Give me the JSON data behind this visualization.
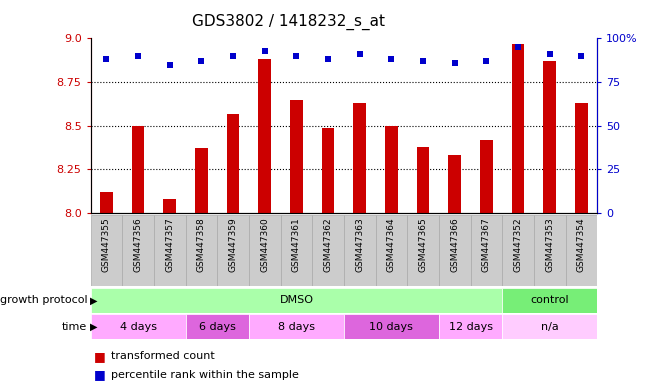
{
  "title": "GDS3802 / 1418232_s_at",
  "samples": [
    "GSM447355",
    "GSM447356",
    "GSM447357",
    "GSM447358",
    "GSM447359",
    "GSM447360",
    "GSM447361",
    "GSM447362",
    "GSM447363",
    "GSM447364",
    "GSM447365",
    "GSM447366",
    "GSM447367",
    "GSM447352",
    "GSM447353",
    "GSM447354"
  ],
  "transformed_counts": [
    8.12,
    8.5,
    8.08,
    8.37,
    8.57,
    8.88,
    8.65,
    8.49,
    8.63,
    8.5,
    8.38,
    8.33,
    8.42,
    8.97,
    8.87,
    8.63
  ],
  "percentile_ranks": [
    88,
    90,
    85,
    87,
    90,
    93,
    90,
    88,
    91,
    88,
    87,
    86,
    87,
    95,
    91,
    90
  ],
  "ylim_left": [
    8.0,
    9.0
  ],
  "ylim_right": [
    0,
    100
  ],
  "yticks_left": [
    8.0,
    8.25,
    8.5,
    8.75,
    9.0
  ],
  "yticks_right": [
    0,
    25,
    50,
    75,
    100
  ],
  "ytick_labels_right": [
    "0",
    "25",
    "50",
    "75",
    "100%"
  ],
  "bar_color": "#cc0000",
  "dot_color": "#0000cc",
  "dotted_lines": [
    8.25,
    8.5,
    8.75
  ],
  "growth_protocol_groups": [
    {
      "label": "DMSO",
      "start": 0,
      "end": 13,
      "color": "#aaffaa"
    },
    {
      "label": "control",
      "start": 13,
      "end": 16,
      "color": "#77ee77"
    }
  ],
  "time_groups": [
    {
      "label": "4 days",
      "start": 0,
      "end": 3,
      "color": "#ffaaff"
    },
    {
      "label": "6 days",
      "start": 3,
      "end": 5,
      "color": "#dd66dd"
    },
    {
      "label": "8 days",
      "start": 5,
      "end": 8,
      "color": "#ffaaff"
    },
    {
      "label": "10 days",
      "start": 8,
      "end": 11,
      "color": "#dd66dd"
    },
    {
      "label": "12 days",
      "start": 11,
      "end": 13,
      "color": "#ffaaff"
    },
    {
      "label": "n/a",
      "start": 13,
      "end": 16,
      "color": "#ffccff"
    }
  ],
  "legend_items": [
    {
      "label": "transformed count",
      "color": "#cc0000"
    },
    {
      "label": "percentile rank within the sample",
      "color": "#0000cc"
    }
  ],
  "bar_width": 0.4,
  "axis_label_color_left": "#cc0000",
  "axis_label_color_right": "#0000cc",
  "background_color": "#ffffff",
  "tick_area_color": "#cccccc",
  "grid_label_left": "growth protocol",
  "grid_label_time": "time"
}
